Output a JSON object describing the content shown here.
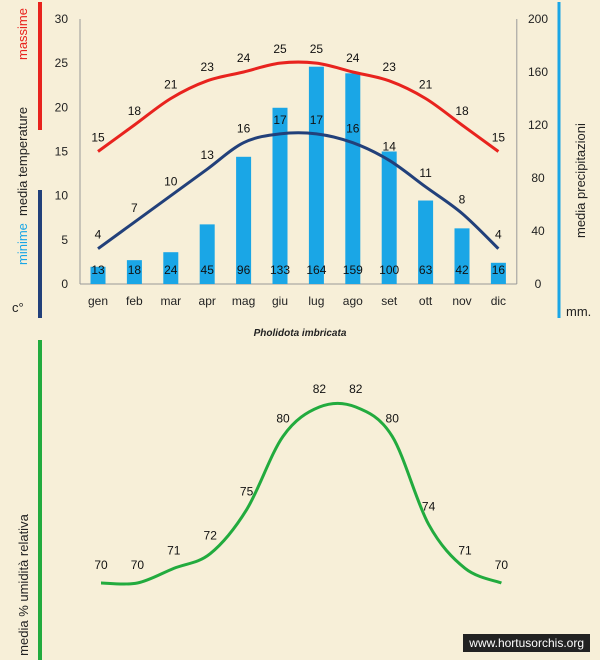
{
  "chart_data": [
    {
      "type": "bar+line",
      "categories": [
        "gen",
        "feb",
        "mar",
        "apr",
        "mag",
        "giu",
        "lug",
        "ago",
        "set",
        "ott",
        "nov",
        "dic"
      ],
      "series": [
        {
          "name": "massime",
          "kind": "line",
          "axis": "left",
          "color": "#e8231e",
          "values": [
            15,
            18,
            21,
            23,
            24,
            25,
            25,
            24,
            23,
            21,
            18,
            15
          ]
        },
        {
          "name": "minime",
          "kind": "line",
          "axis": "left",
          "color": "#22407a",
          "values": [
            4,
            7,
            10,
            13,
            16,
            17,
            17,
            16,
            14,
            11,
            8,
            4
          ]
        },
        {
          "name": "precipitazioni",
          "kind": "bar",
          "axis": "right",
          "color": "#1aa6e6",
          "values": [
            13,
            18,
            24,
            45,
            96,
            133,
            164,
            159,
            100,
            63,
            42,
            16
          ]
        }
      ],
      "left_axis": {
        "range": [
          0,
          30
        ],
        "ticks": [
          "0",
          "5",
          "10",
          "15",
          "20",
          "25",
          "30"
        ]
      },
      "right_axis": {
        "range": [
          0,
          200
        ],
        "ticks": [
          "0",
          "40",
          "80",
          "120",
          "160",
          "200"
        ]
      },
      "ylabel_left": {
        "massime": "massime",
        "media_temperature": "media  temperature",
        "minime": "minime",
        "unit": "c°"
      },
      "ylabel_right": {
        "text": "media  precipitazioni",
        "unit": "mm."
      }
    },
    {
      "type": "line",
      "categories": [
        "gen",
        "feb",
        "mar",
        "apr",
        "mag",
        "giu",
        "lug",
        "ago",
        "set",
        "ott",
        "nov",
        "dic"
      ],
      "series": [
        {
          "name": "umidità relativa",
          "color": "#22ab3e",
          "values": [
            70,
            70,
            71,
            72,
            75,
            80,
            82,
            82,
            80,
            74,
            71,
            70
          ]
        }
      ],
      "ylabel": "media  %  umidità relativa"
    }
  ],
  "title": "Pholidota imbricata",
  "watermark": "www.hortusorchis.org"
}
